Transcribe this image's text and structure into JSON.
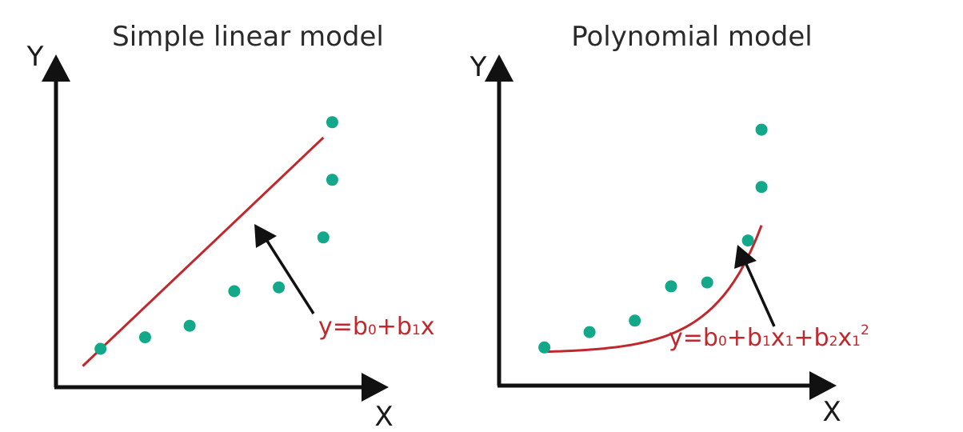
{
  "chart_data": [
    {
      "type": "scatter",
      "title": "Simple linear model",
      "xlabel": "X",
      "ylabel": "Y",
      "points": [
        [
          1,
          1
        ],
        [
          2,
          1.3
        ],
        [
          3,
          1.6
        ],
        [
          4,
          2.5
        ],
        [
          5,
          2.6
        ],
        [
          6,
          3.9
        ],
        [
          6.2,
          5.4
        ],
        [
          6.2,
          6.9
        ]
      ],
      "fit": {
        "kind": "linear",
        "label": {
          "y": "y",
          "eq": "=",
          "b0": "b",
          "s0": "0",
          "plus1": "+",
          "b1": "b",
          "s1": "1",
          "x": "x"
        }
      },
      "xlim": [
        0,
        7
      ],
      "ylim": [
        0,
        8
      ],
      "point_color": "#13a889",
      "line_color": "#c0282d"
    },
    {
      "type": "scatter",
      "title": "Polynomial model",
      "xlabel": "X",
      "ylabel": "Y",
      "points": [
        [
          1,
          1
        ],
        [
          2,
          1.4
        ],
        [
          3,
          1.7
        ],
        [
          3.8,
          2.6
        ],
        [
          4.6,
          2.7
        ],
        [
          5.5,
          3.8
        ],
        [
          5.8,
          5.2
        ],
        [
          5.8,
          6.7
        ]
      ],
      "fit": {
        "kind": "polynomial",
        "label": {
          "y": "y",
          "eq": "=",
          "b0": "b",
          "s0": "0",
          "plus1": "+",
          "b1": "b",
          "s1": "1",
          "x1": "x",
          "s2": "1",
          "plus2": "+",
          "b2": "b",
          "s3": "2",
          "x2": "x",
          "s4": "1",
          "sup": "2"
        }
      },
      "xlim": [
        0,
        7
      ],
      "ylim": [
        0,
        8
      ],
      "point_color": "#13a889",
      "line_color": "#c0282d"
    }
  ]
}
